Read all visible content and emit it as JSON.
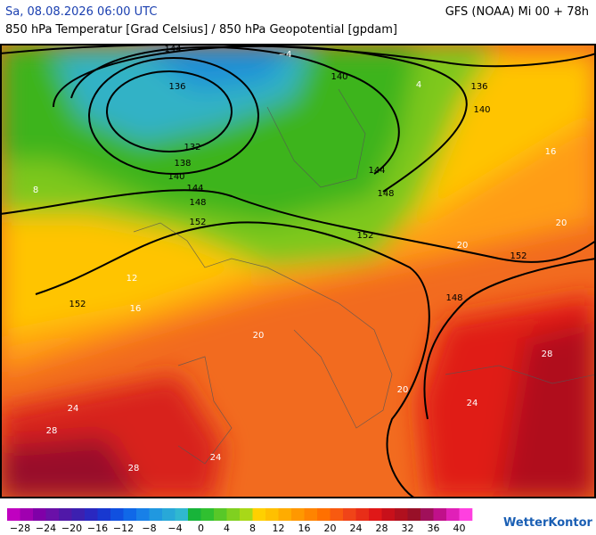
{
  "header": {
    "date": "Sa, 08.08.2026 06:00 UTC",
    "model": "GFS (NOAA) Mi 00 + 78h",
    "subtitle": "850 hPa Temperatur [Grad Celsius] / 850 hPa Geopotential [gpdam]"
  },
  "geopotential_labels": [
    "144",
    "136",
    "132",
    "138",
    "140",
    "144",
    "148",
    "152",
    "140",
    "136",
    "140",
    "144",
    "148",
    "152",
    "152",
    "148",
    "152"
  ],
  "temperature_labels": [
    "−4",
    "4",
    "8",
    "12",
    "16",
    "20",
    "24",
    "28",
    "28",
    "24",
    "20",
    "20",
    "16",
    "20",
    "24",
    "28"
  ],
  "colorbar": {
    "labels": [
      "−28",
      "−24",
      "−20",
      "−16",
      "−12",
      "−8",
      "−4",
      "0",
      "4",
      "8",
      "12",
      "16",
      "20",
      "24",
      "28",
      "32",
      "36",
      "40"
    ]
  },
  "logo": "WetterKontor"
}
